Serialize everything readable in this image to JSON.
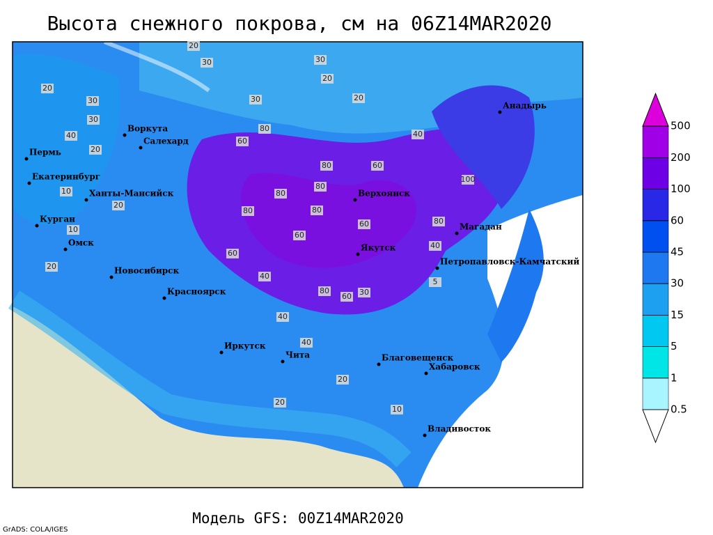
{
  "title": "Высота снежного покрова, см на 06Z14MAR2020",
  "footer": "Модель GFS: 00Z14MAR2020",
  "credit": "GrADS: COLA/IGES",
  "cities": [
    "Воркута",
    "Салехард",
    "Пермь",
    "Екатеринбург",
    "Ханты-Мансийск",
    "Курган",
    "Омск",
    "Новосибирск",
    "Красноярск",
    "Верхоянск",
    "Якутск",
    "Магадан",
    "Анадырь",
    "Петропавловск-Камчатский",
    "Иркутск",
    "Чита",
    "Благовещенск",
    "Хабаровск",
    "Владивосток"
  ],
  "contour_labels": [
    20,
    30,
    30,
    20,
    20,
    30,
    60,
    80,
    80,
    60,
    80,
    80,
    60,
    60,
    80,
    80,
    60,
    40,
    40,
    30,
    30,
    20,
    40,
    20,
    10,
    20,
    10,
    20,
    40,
    40,
    20,
    30,
    60,
    80,
    40,
    20,
    10,
    5,
    100,
    80
  ],
  "colorbar": {
    "levels": [
      0.5,
      1,
      5,
      15,
      30,
      45,
      60,
      100,
      200,
      500
    ],
    "colors": [
      "#ffffff",
      "#a8f4ff",
      "#00e6e6",
      "#00c8f0",
      "#1ea0f0",
      "#1e78f0",
      "#0050f0",
      "#2828e6",
      "#6e00e6",
      "#a000e6",
      "#dc00dc"
    ]
  }
}
